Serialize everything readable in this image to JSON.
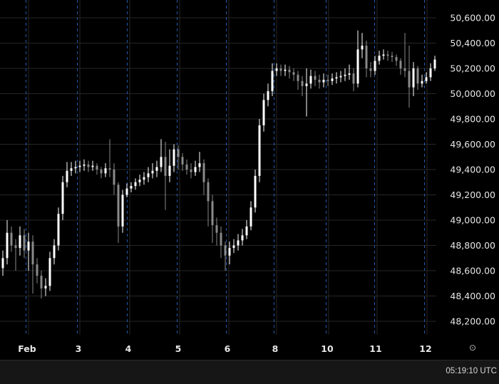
{
  "chart_data": {
    "type": "candlestick",
    "title": "",
    "xlabel": "",
    "ylabel": "",
    "ylim": [
      48100,
      50700
    ],
    "y_ticks": [
      "50,600.00",
      "50,400.00",
      "50,200.00",
      "50,000.00",
      "49,800.00",
      "49,600.00",
      "49,400.00",
      "49,200.00",
      "49,000.00",
      "48,800.00",
      "48,600.00",
      "48,400.00",
      "48,200.00"
    ],
    "y_tick_values": [
      50600,
      50400,
      50200,
      50000,
      49800,
      49600,
      49400,
      49200,
      49000,
      48800,
      48600,
      48400,
      48200
    ],
    "x_ticks": [
      "Feb",
      "3",
      "4",
      "5",
      "6",
      "8",
      "10",
      "11",
      "12"
    ],
    "grid": true,
    "first_open": 48620,
    "close": [
      48700,
      48900,
      48800,
      48780,
      48880,
      48760,
      48830,
      48650,
      48560,
      48460,
      48480,
      48700,
      48800,
      49050,
      49300,
      49390,
      49410,
      49420,
      49430,
      49440,
      49420,
      49430,
      49400,
      49370,
      49410,
      49400,
      49280,
      48950,
      49200,
      49250,
      49270,
      49300,
      49320,
      49340,
      49370,
      49390,
      49420,
      49500,
      49350,
      49430,
      49560,
      49500,
      49440,
      49400,
      49380,
      49420,
      49450,
      49300,
      49150,
      48960,
      48900,
      48800,
      48720,
      48780,
      48800,
      48840,
      48880,
      48950,
      49100,
      49350,
      49750,
      49950,
      50020,
      50180,
      50200,
      50180,
      50190,
      50170,
      50150,
      50100,
      50060,
      50080,
      50140,
      50110,
      50090,
      50110,
      50100,
      50120,
      50130,
      50140,
      50150,
      50160,
      50080,
      50350,
      50380,
      50200,
      50180,
      50260,
      50300,
      50310,
      50300,
      50290,
      50260,
      50200,
      50180,
      50050,
      50200,
      50080,
      50100,
      50130,
      50200,
      50270
    ],
    "high": [
      48760,
      49000,
      48950,
      48850,
      48950,
      48930,
      48900,
      48880,
      48700,
      48600,
      48540,
      48750,
      48850,
      49100,
      49350,
      49460,
      49460,
      49470,
      49470,
      49480,
      49470,
      49470,
      49450,
      49420,
      49450,
      49640,
      49450,
      49300,
      49240,
      49290,
      49300,
      49330,
      49360,
      49380,
      49420,
      49450,
      49470,
      49640,
      49620,
      49560,
      49600,
      49590,
      49530,
      49480,
      49450,
      49470,
      49540,
      49480,
      49330,
      49200,
      49020,
      48950,
      48830,
      48830,
      48850,
      48890,
      48930,
      49000,
      49150,
      49400,
      49800,
      50000,
      50080,
      50240,
      50240,
      50230,
      50230,
      50220,
      50200,
      50180,
      50140,
      50200,
      50190,
      50180,
      50150,
      50160,
      50150,
      50160,
      50170,
      50180,
      50200,
      50230,
      50200,
      50500,
      50480,
      50420,
      50250,
      50300,
      50340,
      50350,
      50340,
      50330,
      50310,
      50280,
      50480,
      50380,
      50250,
      50220,
      50150,
      50170,
      50240,
      50300
    ],
    "low": [
      48560,
      48650,
      48750,
      48600,
      48720,
      48700,
      48600,
      48420,
      48500,
      48380,
      48400,
      48440,
      48650,
      48760,
      49000,
      49260,
      49350,
      49370,
      49380,
      49390,
      49380,
      49390,
      49360,
      49330,
      49340,
      49340,
      49200,
      48820,
      48900,
      49180,
      49220,
      49240,
      49270,
      49280,
      49300,
      49330,
      49340,
      49380,
      49080,
      49300,
      49380,
      49400,
      49390,
      49360,
      49330,
      49350,
      49380,
      49200,
      48950,
      48820,
      48800,
      48700,
      48600,
      48650,
      48740,
      48760,
      48800,
      48850,
      48920,
      49060,
      49300,
      49700,
      49900,
      49980,
      50140,
      50140,
      50140,
      50120,
      50100,
      50030,
      49980,
      49820,
      50040,
      50060,
      50040,
      50050,
      50060,
      50070,
      50080,
      50090,
      50100,
      50110,
      50020,
      50050,
      50280,
      50130,
      50130,
      50150,
      50230,
      50270,
      50260,
      50250,
      50220,
      50150,
      50130,
      49890,
      49980,
      50030,
      50050,
      50080,
      50100,
      50180
    ],
    "colors": {
      "up": "#ffffff",
      "down": "#8a8a8a",
      "background": "#000000",
      "grid": "#262626",
      "session_line": "#2f6fd6"
    }
  },
  "footer": {
    "clock": "05:19:10 UTC",
    "settings_icon": "gear-icon"
  }
}
